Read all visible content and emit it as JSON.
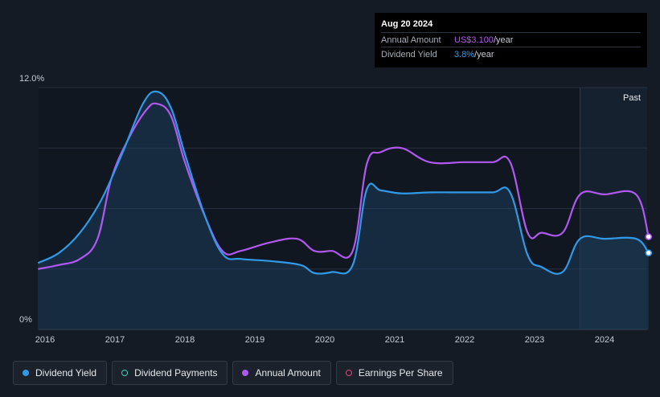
{
  "tooltip": {
    "date": "Aug 20 2024",
    "annual_amount_label": "Annual Amount",
    "annual_amount_value": "US$3.100",
    "annual_amount_unit": "/year",
    "dividend_yield_label": "Dividend Yield",
    "dividend_yield_value": "3.8%",
    "dividend_yield_unit": "/year"
  },
  "legend": [
    {
      "label": "Dividend Yield",
      "color": "#2f9be8",
      "filled": true
    },
    {
      "label": "Dividend Payments",
      "color": "#3ad1b4",
      "filled": false
    },
    {
      "label": "Annual Amount",
      "color": "#b158f2",
      "filled": true
    },
    {
      "label": "Earnings Per Share",
      "color": "#e0457b",
      "filled": false
    }
  ],
  "chart_data": {
    "type": "line",
    "ylim": [
      0,
      12
    ],
    "y_tick_labels": [
      {
        "value": 12,
        "label": "12.0%"
      },
      {
        "value": 0,
        "label": "0%"
      }
    ],
    "x_tick_labels": [
      "2016",
      "2017",
      "2018",
      "2019",
      "2020",
      "2021",
      "2022",
      "2023",
      "2024"
    ],
    "xlim": [
      2015.9,
      2024.63
    ],
    "past_region_start": 2023.65,
    "past_label": "Past",
    "grid": true,
    "series": [
      {
        "name": "Dividend Yield",
        "color": "#2f9be8",
        "x": [
          2015.9,
          2016.2,
          2016.5,
          2016.8,
          2017.1,
          2017.4,
          2017.6,
          2017.8,
          2018.0,
          2018.3,
          2018.55,
          2018.8,
          2019.2,
          2019.65,
          2019.85,
          2020.1,
          2020.4,
          2020.6,
          2020.8,
          2021.1,
          2021.5,
          2022.0,
          2022.4,
          2022.65,
          2022.9,
          2023.1,
          2023.4,
          2023.65,
          2024.0,
          2024.45,
          2024.63
        ],
        "y": [
          3.3,
          3.8,
          4.8,
          6.4,
          8.7,
          11.2,
          11.8,
          11.0,
          8.7,
          5.5,
          3.7,
          3.5,
          3.4,
          3.2,
          2.8,
          2.85,
          3.2,
          6.95,
          6.9,
          6.75,
          6.8,
          6.8,
          6.8,
          6.8,
          3.7,
          3.1,
          2.85,
          4.5,
          4.5,
          4.5,
          3.8
        ]
      },
      {
        "name": "Annual Amount",
        "color": "#b158f2",
        "x": [
          2015.9,
          2016.2,
          2016.5,
          2016.75,
          2016.95,
          2017.2,
          2017.45,
          2017.6,
          2017.8,
          2018.0,
          2018.3,
          2018.55,
          2018.8,
          2019.2,
          2019.6,
          2019.85,
          2020.1,
          2020.4,
          2020.6,
          2020.8,
          2021.1,
          2021.5,
          2022.0,
          2022.4,
          2022.65,
          2022.9,
          2023.1,
          2023.4,
          2023.65,
          2024.0,
          2024.45,
          2024.63
        ],
        "y": [
          3.0,
          3.2,
          3.5,
          4.5,
          7.5,
          9.5,
          10.9,
          11.2,
          10.6,
          8.3,
          5.5,
          3.85,
          3.9,
          4.3,
          4.5,
          3.9,
          3.9,
          3.9,
          8.2,
          8.8,
          9.0,
          8.3,
          8.3,
          8.3,
          8.3,
          4.8,
          4.8,
          4.8,
          6.7,
          6.7,
          6.7,
          4.6
        ]
      }
    ]
  }
}
